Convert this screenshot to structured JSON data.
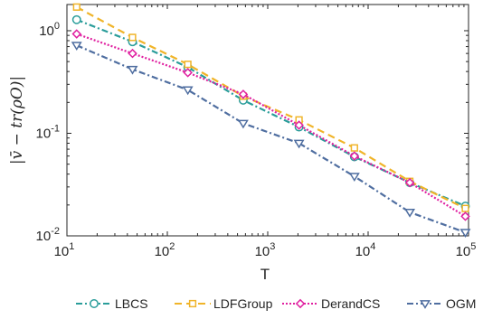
{
  "chart_data": {
    "type": "line",
    "xscale": "log",
    "yscale": "log",
    "xlim": [
      10,
      100000
    ],
    "ylim": [
      0.01,
      1.8
    ],
    "xlabel": "T",
    "ylabel": "|v̄ − tr(ρO)|",
    "grid": false,
    "legend_position": "bottom",
    "x_ticks": [
      {
        "value": 10,
        "base": "10",
        "exp": "1"
      },
      {
        "value": 100,
        "base": "10",
        "exp": "2"
      },
      {
        "value": 1000,
        "base": "10",
        "exp": "3"
      },
      {
        "value": 10000,
        "base": "10",
        "exp": "4"
      },
      {
        "value": 100000,
        "base": "10",
        "exp": "5"
      }
    ],
    "y_ticks": [
      {
        "value": 0.01,
        "base": "10",
        "exp": "-2"
      },
      {
        "value": 0.1,
        "base": "10",
        "exp": "-1"
      },
      {
        "value": 1,
        "base": "10",
        "exp": "0"
      }
    ],
    "x": [
      12.5,
      45,
      160,
      570,
      2050,
      7300,
      26000,
      93000
    ],
    "series": [
      {
        "name": "LBCS",
        "color": "#2a9d9a",
        "marker": "circle",
        "dash": "7,3,2,3",
        "values": [
          1.28,
          0.78,
          0.44,
          0.21,
          0.115,
          0.059,
          0.033,
          0.0195
        ]
      },
      {
        "name": "LDFGroup",
        "color": "#f0b429",
        "marker": "square",
        "dash": "8,5",
        "values": [
          1.7,
          0.86,
          0.47,
          0.23,
          0.135,
          0.072,
          0.034,
          0.0185
        ]
      },
      {
        "name": "DerandCS",
        "color": "#e020a0",
        "marker": "diamond",
        "dash": "2,2",
        "values": [
          0.93,
          0.6,
          0.39,
          0.24,
          0.12,
          0.06,
          0.033,
          0.0155
        ]
      },
      {
        "name": "OGM",
        "color": "#4f6ea0",
        "marker": "triangle-down",
        "dash": "7,3,2,3",
        "values": [
          0.72,
          0.42,
          0.265,
          0.125,
          0.08,
          0.038,
          0.017,
          0.0108
        ]
      }
    ]
  }
}
